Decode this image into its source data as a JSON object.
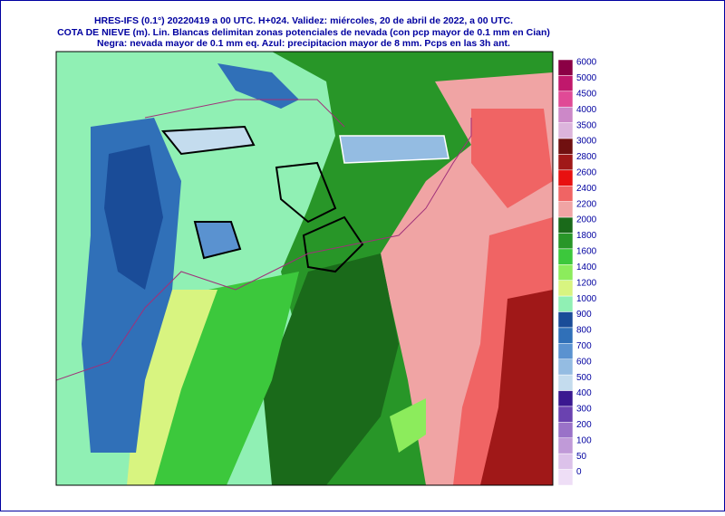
{
  "header": {
    "lines": [
      "HRES-IFS (0.1°) 20220419 a 00 UTC.  H+024. Validez: miércoles, 20 de abril de 2022,  a  00 UTC.",
      "COTA DE NIEVE (m). Lin. Blancas delimitan zonas potenciales de nevada (con pcp mayor de 0.1 mm en Cian)",
      "Negra: nevada mayor de 0.1 mm eq. Azul: precipitacion mayor de 8 mm. Pcps en las 3h ant."
    ]
  },
  "legend": {
    "levels": [
      {
        "value": 6000,
        "color": "#8b0045"
      },
      {
        "value": 5000,
        "color": "#c0186c"
      },
      {
        "value": 4500,
        "color": "#e04a96"
      },
      {
        "value": 4000,
        "color": "#cc88c8"
      },
      {
        "value": 3500,
        "color": "#dcb4dc"
      },
      {
        "value": 3000,
        "color": "#701010"
      },
      {
        "value": 2800,
        "color": "#a01818"
      },
      {
        "value": 2600,
        "color": "#e81010"
      },
      {
        "value": 2400,
        "color": "#f06464"
      },
      {
        "value": 2200,
        "color": "#f0a4a4"
      },
      {
        "value": 2000,
        "color": "#1a6a1a"
      },
      {
        "value": 1800,
        "color": "#289628"
      },
      {
        "value": 1600,
        "color": "#3cc83c"
      },
      {
        "value": 1400,
        "color": "#8cec5c"
      },
      {
        "value": 1200,
        "color": "#d8f480"
      },
      {
        "value": 1000,
        "color": "#90f0b4"
      },
      {
        "value": 900,
        "color": "#1a4c98"
      },
      {
        "value": 800,
        "color": "#3070b8"
      },
      {
        "value": 700,
        "color": "#5a92d0"
      },
      {
        "value": 600,
        "color": "#94bce2"
      },
      {
        "value": 500,
        "color": "#c4dcee"
      },
      {
        "value": 400,
        "color": "#3a1890"
      },
      {
        "value": 300,
        "color": "#6a42b0"
      },
      {
        "value": 200,
        "color": "#9a72c8"
      },
      {
        "value": 100,
        "color": "#c09ad8"
      },
      {
        "value": 50,
        "color": "#dcc2ea"
      },
      {
        "value": 0,
        "color": "#eedef6"
      }
    ]
  }
}
